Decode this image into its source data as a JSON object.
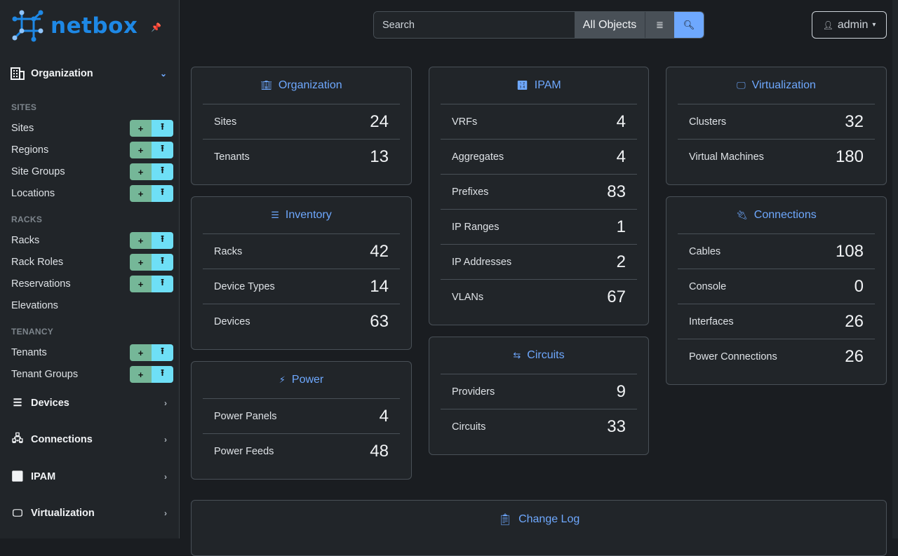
{
  "brand": {
    "name": "netbox",
    "color": "#1e88e5"
  },
  "sidebar": {
    "org": {
      "label": "Organization",
      "icon": "building-icon"
    },
    "sections": [
      {
        "title": "SITES",
        "items": [
          {
            "label": "Sites",
            "buttons": true
          },
          {
            "label": "Regions",
            "buttons": true
          },
          {
            "label": "Site Groups",
            "buttons": true
          },
          {
            "label": "Locations",
            "buttons": true
          }
        ]
      },
      {
        "title": "RACKS",
        "items": [
          {
            "label": "Racks",
            "buttons": true
          },
          {
            "label": "Rack Roles",
            "buttons": true
          },
          {
            "label": "Reservations",
            "buttons": true
          },
          {
            "label": "Elevations",
            "buttons": false
          }
        ]
      },
      {
        "title": "TENANCY",
        "items": [
          {
            "label": "Tenants",
            "buttons": true
          },
          {
            "label": "Tenant Groups",
            "buttons": true
          }
        ]
      }
    ],
    "menus": [
      {
        "label": "Devices",
        "icon": "server-icon"
      },
      {
        "label": "Connections",
        "icon": "ethernet-icon"
      },
      {
        "label": "IPAM",
        "icon": "counter-icon"
      },
      {
        "label": "Virtualization",
        "icon": "monitor-icon"
      }
    ]
  },
  "search": {
    "placeholder": "Search",
    "scope": "All Objects"
  },
  "user": {
    "label": "admin"
  },
  "columns": [
    [
      {
        "title": "Organization",
        "icon": "building-icon",
        "rows": [
          [
            "Sites",
            "24"
          ],
          [
            "Tenants",
            "13"
          ]
        ]
      },
      {
        "title": "Inventory",
        "icon": "server-icon",
        "rows": [
          [
            "Racks",
            "42"
          ],
          [
            "Device Types",
            "14"
          ],
          [
            "Devices",
            "63"
          ]
        ]
      },
      {
        "title": "Power",
        "icon": "flash-icon",
        "rows": [
          [
            "Power Panels",
            "4"
          ],
          [
            "Power Feeds",
            "48"
          ]
        ]
      }
    ],
    [
      {
        "title": "IPAM",
        "icon": "counter-icon",
        "rows": [
          [
            "VRFs",
            "4"
          ],
          [
            "Aggregates",
            "4"
          ],
          [
            "Prefixes",
            "83"
          ],
          [
            "IP Ranges",
            "1"
          ],
          [
            "IP Addresses",
            "2"
          ],
          [
            "VLANs",
            "67"
          ]
        ]
      },
      {
        "title": "Circuits",
        "icon": "transit-icon",
        "rows": [
          [
            "Providers",
            "9"
          ],
          [
            "Circuits",
            "33"
          ]
        ]
      }
    ],
    [
      {
        "title": "Virtualization",
        "icon": "monitor-icon",
        "rows": [
          [
            "Clusters",
            "32"
          ],
          [
            "Virtual Machines",
            "180"
          ]
        ]
      },
      {
        "title": "Connections",
        "icon": "cable-icon",
        "rows": [
          [
            "Cables",
            "108"
          ],
          [
            "Console",
            "0"
          ],
          [
            "Interfaces",
            "26"
          ],
          [
            "Power Connections",
            "26"
          ]
        ]
      }
    ]
  ],
  "changelog": {
    "title": "Change Log",
    "icon": "clipboard-clock-icon"
  },
  "colors": {
    "accent": "#6ea8fe",
    "add": "#75b798",
    "import": "#6edff6"
  }
}
